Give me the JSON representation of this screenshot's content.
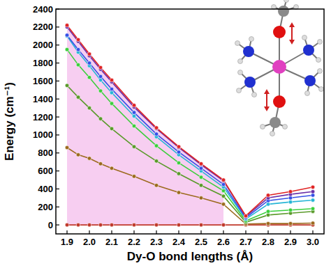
{
  "chart_data": {
    "type": "line",
    "x_label": "Dy-O bond lengths (Å)",
    "y_label": "Energy (cm⁻¹)",
    "x": [
      1.9,
      1.95,
      2.0,
      2.05,
      2.1,
      2.2,
      2.3,
      2.4,
      2.5,
      2.6,
      2.7,
      2.8,
      2.9,
      3.0
    ],
    "xlim": [
      1.85,
      3.05
    ],
    "xticks": [
      1.9,
      {
        "value": 2,
        "label": "2.0"
      },
      2.1,
      2.2,
      2.3,
      2.4,
      2.5,
      2.6,
      2.7,
      2.8,
      2.9,
      {
        "value": 3,
        "label": "3.0"
      }
    ],
    "ylim": [
      -100,
      2400
    ],
    "yticks": [
      0,
      200,
      400,
      600,
      800,
      1000,
      1200,
      1400,
      1600,
      1800,
      2000,
      2200,
      2400
    ],
    "marker": "circle",
    "shaded_range": [
      1.9,
      2.6
    ],
    "series": [
      {
        "color": "#c0392b",
        "values": [
          0,
          0,
          0,
          0,
          0,
          0,
          0,
          0,
          0,
          0,
          0,
          0,
          0,
          0
        ]
      },
      {
        "color": "#9c6a1e",
        "values": [
          860,
          780,
          740,
          680,
          630,
          540,
          440,
          360,
          300,
          230,
          10,
          15,
          15,
          20
        ]
      },
      {
        "color": "#5a9a2a",
        "values": [
          1550,
          1420,
          1300,
          1180,
          1070,
          870,
          710,
          570,
          440,
          320,
          30,
          110,
          130,
          150
        ]
      },
      {
        "color": "#3ccf3c",
        "values": [
          1950,
          1780,
          1640,
          1490,
          1350,
          1100,
          880,
          690,
          530,
          380,
          45,
          150,
          165,
          180
        ]
      },
      {
        "color": "#29b6d6",
        "values": [
          2100,
          1920,
          1770,
          1610,
          1470,
          1210,
          980,
          780,
          600,
          420,
          65,
          230,
          255,
          275
        ]
      },
      {
        "color": "#3550e6",
        "values": [
          2110,
          1950,
          1800,
          1650,
          1510,
          1250,
          1010,
          810,
          630,
          450,
          80,
          270,
          300,
          330
        ]
      },
      {
        "color": "#6a2fa8",
        "values": [
          2200,
          2040,
          1880,
          1730,
          1590,
          1310,
          1070,
          860,
          670,
          490,
          95,
          300,
          340,
          370
        ]
      },
      {
        "color": "#e02424",
        "values": [
          2220,
          2060,
          1900,
          1750,
          1610,
          1330,
          1080,
          870,
          680,
          500,
          100,
          330,
          370,
          420
        ]
      }
    ]
  }
}
